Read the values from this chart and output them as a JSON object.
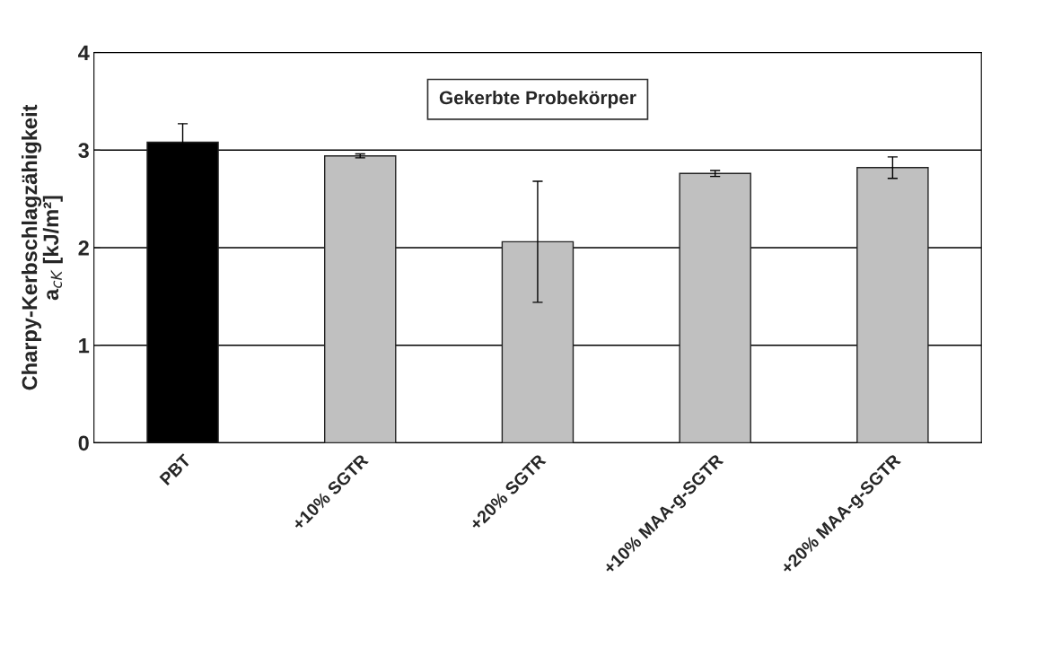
{
  "chart_data": {
    "type": "bar",
    "ylabel": "Charpy-Kerbschlagzähigkeit\na$_{cK}$ [kJ/m²]",
    "annotations": [
      "Gekerbte Probekörper"
    ],
    "categories": [
      "PBT",
      "+10% SGTR",
      "+20% SGTR",
      "+10% MAA-g-SGTR",
      "+20% MAA-g-SGTR"
    ],
    "values": [
      3.08,
      2.94,
      2.06,
      2.76,
      2.82
    ],
    "errors": [
      0.19,
      0.02,
      0.62,
      0.03,
      0.11
    ],
    "colors": [
      "#000000",
      "#c0c0c0",
      "#c0c0c0",
      "#c0c0c0",
      "#c0c0c0"
    ],
    "ylim": [
      0,
      4
    ],
    "yticks": [
      0,
      1,
      2,
      3,
      4
    ],
    "grid": "y"
  }
}
